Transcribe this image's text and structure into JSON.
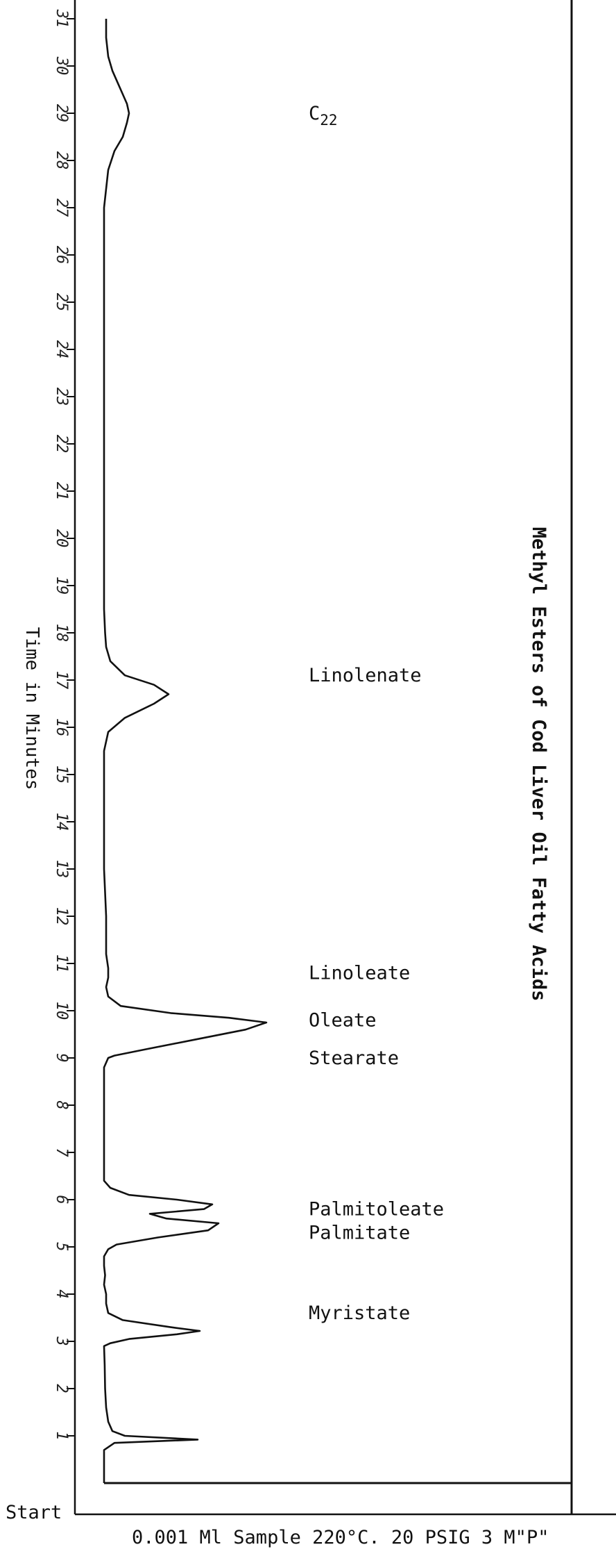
{
  "chart_data": {
    "type": "line",
    "title": "Methyl Esters of Cod Liver Oil Fatty Acids",
    "caption": "0.001 Ml Sample 220°C. 20 PSIG  3 M\"P\"",
    "ylabel": "Time in Minutes",
    "start_label": "Start",
    "time_range": [
      0,
      31
    ],
    "ticks": [
      1,
      2,
      3,
      4,
      5,
      6,
      7,
      8,
      9,
      10,
      11,
      12,
      13,
      14,
      15,
      16,
      17,
      18,
      19,
      20,
      21,
      22,
      23,
      24,
      25,
      26,
      27,
      28,
      29,
      30,
      31
    ],
    "tick_labels": [
      "1",
      "2",
      "3",
      "4",
      "5",
      "6",
      "7",
      "8",
      "9",
      "10",
      "11",
      "12",
      "13",
      "14",
      "15",
      "16",
      "17",
      "18",
      "19",
      "20",
      "21",
      "22",
      "23",
      "24",
      "25",
      "26",
      "27",
      "28",
      "29",
      "30",
      "31"
    ],
    "peaks": [
      {
        "label": "Myristate",
        "time": 3.2,
        "label_time": 3.6
      },
      {
        "label": "Palmitate",
        "time": 5.5,
        "label_time": 5.3
      },
      {
        "label": "Palmitoleate",
        "time": 5.9,
        "label_time": 5.8
      },
      {
        "label": "Stearate",
        "time": 9.3,
        "label_time": 9.0
      },
      {
        "label": "Oleate",
        "time": 9.8,
        "label_time": 9.8
      },
      {
        "label": "Linoleate",
        "time": 10.4,
        "label_time": 10.8
      },
      {
        "label": "Linolenate",
        "time": 16.8,
        "label_time": 17.1
      },
      {
        "label": "C22",
        "label_main": "C",
        "label_sub": "22",
        "time": 29.0,
        "label_time": 29.0
      }
    ],
    "trace": {
      "x": [
        0.0,
        0.4,
        0.7,
        0.85,
        0.92,
        1.0,
        1.1,
        1.3,
        1.6,
        2.0,
        2.5,
        2.9,
        2.96,
        3.05,
        3.15,
        3.22,
        3.3,
        3.45,
        3.6,
        3.8,
        4.0,
        4.2,
        4.4,
        4.6,
        4.8,
        4.95,
        5.05,
        5.2,
        5.35,
        5.5,
        5.6,
        5.7,
        5.8,
        5.9,
        6.0,
        6.1,
        6.25,
        6.4,
        6.6,
        7.0,
        7.5,
        8.0,
        8.5,
        8.8,
        9.0,
        9.05,
        9.2,
        9.4,
        9.6,
        9.75,
        9.85,
        9.95,
        10.1,
        10.3,
        10.5,
        10.7,
        10.9,
        11.2,
        12.0,
        13.0,
        14.0,
        15.0,
        15.5,
        15.9,
        16.2,
        16.5,
        16.7,
        16.9,
        17.1,
        17.4,
        17.7,
        18.0,
        18.5,
        20.0,
        22.0,
        24.0,
        26.0,
        27.0,
        27.8,
        28.2,
        28.5,
        28.8,
        29.0,
        29.2,
        29.5,
        29.9,
        30.2,
        30.6,
        31.0
      ],
      "y": [
        0.0,
        0.0,
        0.0,
        0.05,
        0.45,
        0.1,
        0.04,
        0.02,
        0.01,
        0.005,
        0.003,
        0.0,
        0.03,
        0.12,
        0.35,
        0.46,
        0.32,
        0.09,
        0.02,
        0.01,
        0.01,
        0.0,
        0.005,
        0.0,
        0.0,
        0.02,
        0.06,
        0.26,
        0.5,
        0.55,
        0.3,
        0.22,
        0.48,
        0.52,
        0.35,
        0.12,
        0.03,
        0.0,
        0.0,
        0.0,
        0.0,
        0.0,
        0.0,
        0.0,
        0.02,
        0.05,
        0.22,
        0.45,
        0.68,
        0.78,
        0.6,
        0.32,
        0.08,
        0.02,
        0.01,
        0.02,
        0.02,
        0.01,
        0.01,
        0.0,
        0.0,
        0.0,
        0.0,
        0.02,
        0.1,
        0.24,
        0.31,
        0.24,
        0.1,
        0.03,
        0.01,
        0.005,
        0.0,
        0.0,
        0.0,
        0.0,
        0.0,
        0.0,
        0.02,
        0.05,
        0.09,
        0.11,
        0.12,
        0.11,
        0.08,
        0.04,
        0.02,
        0.01,
        0.01
      ]
    }
  }
}
